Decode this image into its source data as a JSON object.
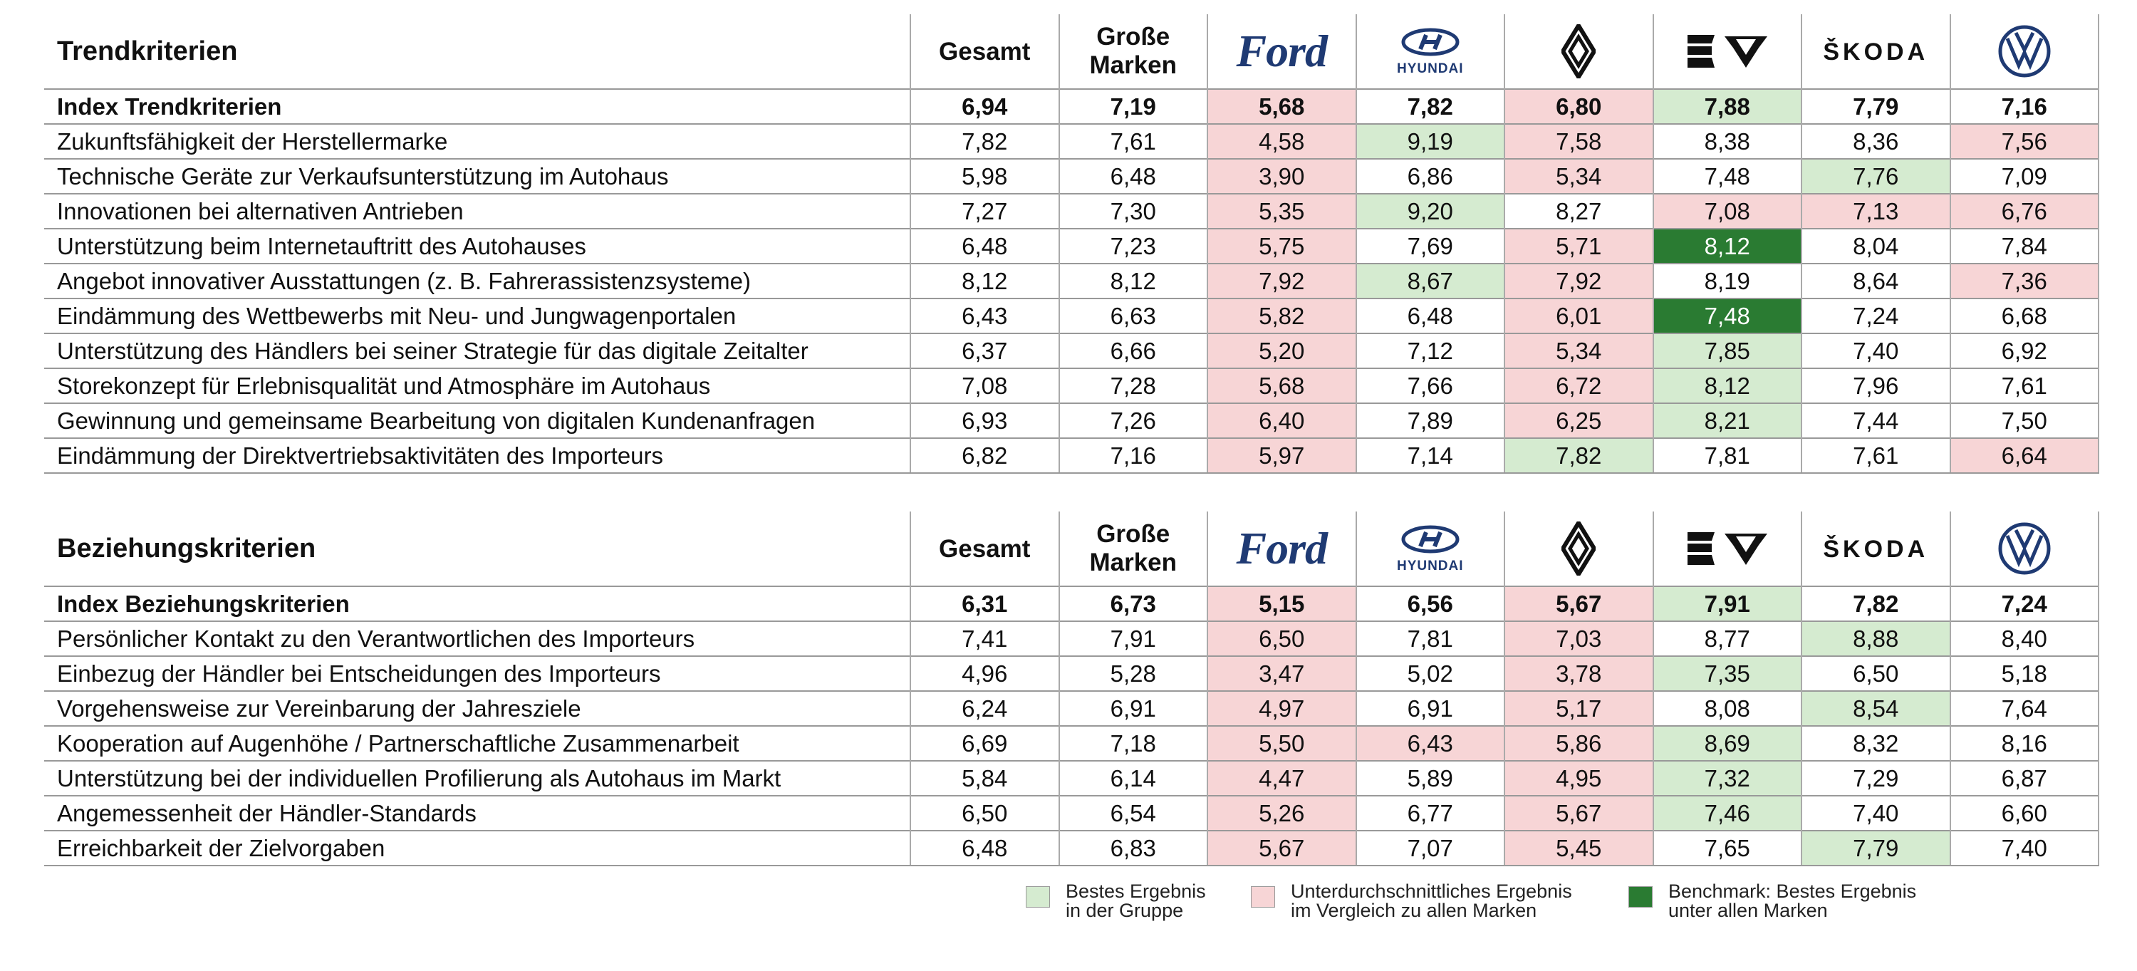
{
  "chart_data": [
    {
      "type": "table",
      "title": "Trendkriterien",
      "columns": [
        "Gesamt",
        "Große Marken",
        "Ford",
        "Hyundai",
        "Renault",
        "Cupra/Seat",
        "Skoda",
        "VW"
      ],
      "rows": [
        {
          "label": "Index Trendkriterien",
          "bold": true,
          "values": [
            "6,94",
            "7,19",
            "5,68",
            "7,82",
            "6,80",
            "7,88",
            "7,79",
            "7,16"
          ],
          "highlight": [
            "",
            "",
            "red",
            "",
            "red",
            "green",
            "",
            ""
          ]
        },
        {
          "label": "Zukunftsfähigkeit der Herstellermarke",
          "values": [
            "7,82",
            "7,61",
            "4,58",
            "9,19",
            "7,58",
            "8,38",
            "8,36",
            "7,56"
          ],
          "highlight": [
            "",
            "",
            "red",
            "green",
            "red",
            "",
            "",
            "red"
          ]
        },
        {
          "label": "Technische Geräte zur Verkaufsunterstützung im Autohaus",
          "values": [
            "5,98",
            "6,48",
            "3,90",
            "6,86",
            "5,34",
            "7,48",
            "7,76",
            "7,09"
          ],
          "highlight": [
            "",
            "",
            "red",
            "",
            "red",
            "",
            "green",
            ""
          ]
        },
        {
          "label": "Innovationen bei alternativen Antrieben",
          "values": [
            "7,27",
            "7,30",
            "5,35",
            "9,20",
            "8,27",
            "7,08",
            "7,13",
            "6,76"
          ],
          "highlight": [
            "",
            "",
            "red",
            "green",
            "",
            "red",
            "red",
            "red"
          ]
        },
        {
          "label": "Unterstützung beim Internetauftritt des Autohauses",
          "values": [
            "6,48",
            "7,23",
            "5,75",
            "7,69",
            "5,71",
            "8,12",
            "8,04",
            "7,84"
          ],
          "highlight": [
            "",
            "",
            "red",
            "",
            "red",
            "bench",
            "",
            ""
          ]
        },
        {
          "label": "Angebot innovativer Ausstattungen (z. B. Fahrerassistenzsysteme)",
          "values": [
            "8,12",
            "8,12",
            "7,92",
            "8,67",
            "7,92",
            "8,19",
            "8,64",
            "7,36"
          ],
          "highlight": [
            "",
            "",
            "red",
            "green",
            "red",
            "",
            "",
            "red"
          ]
        },
        {
          "label": "Eindämmung des Wettbewerbs mit Neu- und Jungwagenportalen",
          "values": [
            "6,43",
            "6,63",
            "5,82",
            "6,48",
            "6,01",
            "7,48",
            "7,24",
            "6,68"
          ],
          "highlight": [
            "",
            "",
            "red",
            "",
            "red",
            "bench",
            "",
            ""
          ]
        },
        {
          "label": "Unterstützung des Händlers bei seiner Strategie für das digitale Zeitalter",
          "values": [
            "6,37",
            "6,66",
            "5,20",
            "7,12",
            "5,34",
            "7,85",
            "7,40",
            "6,92"
          ],
          "highlight": [
            "",
            "",
            "red",
            "",
            "red",
            "green",
            "",
            ""
          ]
        },
        {
          "label": "Storekonzept für Erlebnisqualität und Atmosphäre im Autohaus",
          "values": [
            "7,08",
            "7,28",
            "5,68",
            "7,66",
            "6,72",
            "8,12",
            "7,96",
            "7,61"
          ],
          "highlight": [
            "",
            "",
            "red",
            "",
            "red",
            "green",
            "",
            ""
          ]
        },
        {
          "label": "Gewinnung und gemeinsame Bearbeitung von digitalen Kundenanfragen",
          "values": [
            "6,93",
            "7,26",
            "6,40",
            "7,89",
            "6,25",
            "8,21",
            "7,44",
            "7,50"
          ],
          "highlight": [
            "",
            "",
            "red",
            "",
            "red",
            "green",
            "",
            ""
          ]
        },
        {
          "label": "Eindämmung der Direktvertriebsaktivitäten des Importeurs",
          "values": [
            "6,82",
            "7,16",
            "5,97",
            "7,14",
            "7,82",
            "7,81",
            "7,61",
            "6,64"
          ],
          "highlight": [
            "",
            "",
            "red",
            "",
            "green",
            "",
            "",
            "red"
          ]
        }
      ]
    },
    {
      "type": "table",
      "title": "Beziehungskriterien",
      "columns": [
        "Gesamt",
        "Große Marken",
        "Ford",
        "Hyundai",
        "Renault",
        "Cupra/Seat",
        "Skoda",
        "VW"
      ],
      "rows": [
        {
          "label": "Index Beziehungskriterien",
          "bold": true,
          "values": [
            "6,31",
            "6,73",
            "5,15",
            "6,56",
            "5,67",
            "7,91",
            "7,82",
            "7,24"
          ],
          "highlight": [
            "",
            "",
            "red",
            "",
            "red",
            "green",
            "",
            ""
          ]
        },
        {
          "label": "Persönlicher Kontakt zu den Verantwortlichen des Importeurs",
          "values": [
            "7,41",
            "7,91",
            "6,50",
            "7,81",
            "7,03",
            "8,77",
            "8,88",
            "8,40"
          ],
          "highlight": [
            "",
            "",
            "red",
            "",
            "red",
            "",
            "green",
            ""
          ]
        },
        {
          "label": "Einbezug der Händler bei Entscheidungen des Importeurs",
          "values": [
            "4,96",
            "5,28",
            "3,47",
            "5,02",
            "3,78",
            "7,35",
            "6,50",
            "5,18"
          ],
          "highlight": [
            "",
            "",
            "red",
            "",
            "red",
            "green",
            "",
            ""
          ]
        },
        {
          "label": "Vorgehensweise zur Vereinbarung der Jahresziele",
          "values": [
            "6,24",
            "6,91",
            "4,97",
            "6,91",
            "5,17",
            "8,08",
            "8,54",
            "7,64"
          ],
          "highlight": [
            "",
            "",
            "red",
            "",
            "red",
            "",
            "green",
            ""
          ]
        },
        {
          "label": "Kooperation auf Augenhöhe / Partnerschaftliche Zusammenarbeit",
          "values": [
            "6,69",
            "7,18",
            "5,50",
            "6,43",
            "5,86",
            "8,69",
            "8,32",
            "8,16"
          ],
          "highlight": [
            "",
            "",
            "red",
            "red",
            "red",
            "green",
            "",
            ""
          ]
        },
        {
          "label": "Unterstützung bei der individuellen Profilierung als Autohaus im Markt",
          "values": [
            "5,84",
            "6,14",
            "4,47",
            "5,89",
            "4,95",
            "7,32",
            "7,29",
            "6,87"
          ],
          "highlight": [
            "",
            "",
            "red",
            "",
            "red",
            "green",
            "",
            ""
          ]
        },
        {
          "label": "Angemessenheit der Händler-Standards",
          "values": [
            "6,50",
            "6,54",
            "5,26",
            "6,77",
            "5,67",
            "7,46",
            "7,40",
            "6,60"
          ],
          "highlight": [
            "",
            "",
            "red",
            "",
            "red",
            "green",
            "",
            ""
          ]
        },
        {
          "label": "Erreichbarkeit der Zielvorgaben",
          "values": [
            "6,48",
            "6,83",
            "5,67",
            "7,07",
            "5,45",
            "7,65",
            "7,79",
            "7,40"
          ],
          "highlight": [
            "",
            "",
            "red",
            "",
            "red",
            "",
            "green",
            ""
          ]
        }
      ]
    }
  ],
  "headers": {
    "gesamt": "Gesamt",
    "grosse_line1": "Große",
    "grosse_line2": "Marken",
    "ford_logo": "Ford",
    "hyundai_logo": "HYUNDAI",
    "skoda_logo": "ŠKODA",
    "renault_logo_icon": "renault-diamond-logo",
    "cupra_logo_icon": "seat-cupra-logo",
    "vw_logo_icon": "vw-logo"
  },
  "legend": [
    {
      "key": "green",
      "color": "#d5ebd0",
      "line1": "Bestes Ergebnis",
      "line2": "in der Gruppe"
    },
    {
      "key": "red",
      "color": "#f7d5d6",
      "line1": "Unterdurchschnittliches Ergebnis",
      "line2": "im Vergleich zu allen Marken"
    },
    {
      "key": "bench",
      "color": "#2a7b32",
      "line1": "Benchmark: Bestes Ergebnis",
      "line2": "unter allen Marken"
    }
  ]
}
